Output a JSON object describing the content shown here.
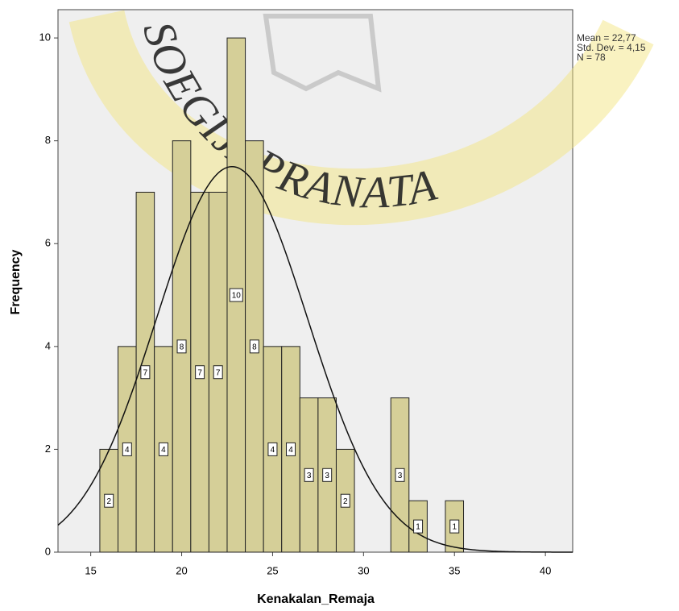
{
  "chart_data": {
    "type": "histogram",
    "x_label": "Kenakalan_Remaja",
    "y_label": "Frequency",
    "bins": [
      15.5,
      16.5,
      17.5,
      18.5,
      19.5,
      20.5,
      21.5,
      22.5,
      23.5,
      24.5,
      25.5,
      26.5,
      27.5,
      28.5,
      29.5,
      30.5,
      31.5,
      32.5,
      33.5,
      34.5,
      35.5
    ],
    "values": [
      2,
      4,
      7,
      4,
      8,
      7,
      7,
      10,
      8,
      4,
      4,
      3,
      3,
      2,
      0,
      0,
      3,
      1,
      0,
      1
    ],
    "color": "#d5cf98",
    "xlim": [
      13.2,
      41.5
    ],
    "ylim": [
      0,
      10.55
    ],
    "xticks": [
      15,
      20,
      25,
      30,
      35,
      40
    ],
    "yticks": [
      0,
      2,
      4,
      6,
      8,
      10
    ],
    "stats": [
      {
        "value": 22.77,
        "label": "Mean = 22,77"
      },
      {
        "value": 4.15,
        "label": "Std. Dev. = 4,15"
      },
      {
        "value": 78,
        "label": "N = 78"
      }
    ],
    "watermark": "SOEGIJAPRANATA"
  }
}
